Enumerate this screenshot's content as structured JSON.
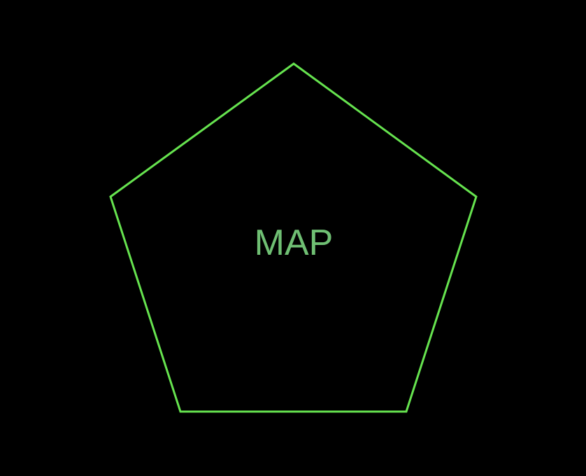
{
  "background_color": "#000000",
  "shape": {
    "type": "pentagon",
    "stroke_color": "#66E34F",
    "fill": "none"
  },
  "label": {
    "text": "MAP",
    "color": "#6FBF73"
  }
}
